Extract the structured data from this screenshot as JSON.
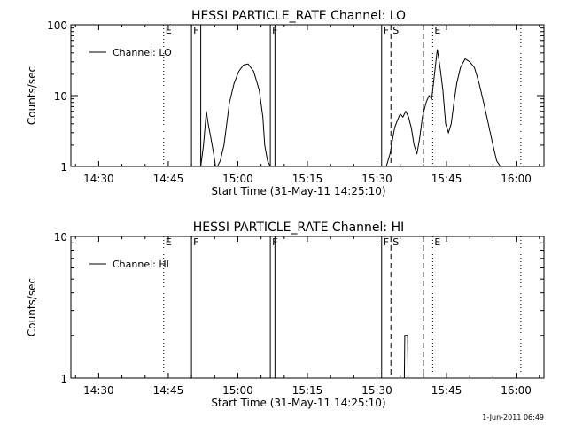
{
  "footer": {
    "timestamp": "1-Jun-2011 06:49"
  },
  "styles": {
    "line_color": "#000000",
    "background": "#ffffff"
  },
  "chart_data": [
    {
      "type": "line",
      "title": "HESSI PARTICLE_RATE Channel: LO",
      "xlabel": "Start Time (31-May-11 14:25:10)",
      "ylabel": "Counts/sec",
      "xlim": [
        "14:24",
        "16:06"
      ],
      "ylim": [
        1,
        100
      ],
      "yscale": "log",
      "x_ticks": [
        "14:30",
        "14:45",
        "15:00",
        "15:15",
        "15:30",
        "15:45",
        "16:00"
      ],
      "y_ticks": [
        "1",
        "10",
        "100"
      ],
      "legend": {
        "entries": [
          "Channel: LO"
        ],
        "position": "top-left"
      },
      "series": [
        {
          "name": "Channel: LO",
          "x": [
            "14:52.0",
            "14:52.6",
            "14:53.2",
            "14:53.6",
            "14:54.2",
            "14:54.8",
            "14:55.2",
            "14:55.6",
            "14:56.2",
            "14:57.0",
            "14:57.6",
            "14:58.2",
            "14:59.2",
            "15:00.2",
            "15:01.2",
            "15:02.2",
            "15:03.4",
            "15:04.6",
            "15:05.4",
            "15:05.8",
            "15:06.4",
            "15:07.0",
            "15:07.4",
            "15:32.0",
            "15:32.8",
            "15:33.4",
            "15:33.8",
            "15:34.4",
            "15:35.0",
            "15:35.6",
            "15:36.2",
            "15:36.8",
            "15:37.4",
            "15:38.0",
            "15:38.6",
            "15:39.2",
            "15:39.8",
            "15:40.6",
            "15:41.2",
            "15:41.8",
            "15:42.4",
            "15:43.0",
            "15:43.6",
            "15:44.2",
            "15:44.8",
            "15:45.4",
            "15:46.0",
            "15:46.6",
            "15:47.2",
            "15:48.0",
            "15:49.0",
            "15:50.0",
            "15:51.0",
            "15:52.0",
            "15:53.0",
            "15:54.0",
            "15:55.0",
            "15:55.8",
            "15:56.6",
            "15:57.2"
          ],
          "y": [
            1.0,
            2.0,
            6.0,
            4.0,
            2.5,
            1.5,
            1.0,
            1.0,
            1.2,
            2.0,
            4.0,
            8.0,
            15.0,
            22.0,
            27.0,
            28.0,
            22.0,
            12.0,
            5.0,
            2.0,
            1.2,
            1.0,
            1.0,
            1.0,
            1.5,
            2.5,
            3.5,
            4.5,
            5.5,
            5.0,
            6.0,
            5.0,
            3.5,
            2.0,
            1.5,
            2.5,
            5.0,
            8.0,
            10.0,
            9.0,
            20.0,
            45.0,
            25.0,
            12.0,
            4.0,
            3.0,
            4.0,
            8.0,
            15.0,
            25.0,
            33.0,
            30.0,
            25.0,
            15.0,
            8.0,
            4.0,
            2.0,
            1.2,
            1.0,
            1.0
          ]
        }
      ],
      "vertical_markers": [
        {
          "time": "14:44",
          "style": "dotted",
          "label": "E"
        },
        {
          "time": "14:50",
          "style": "solid",
          "label": "F"
        },
        {
          "time": "14:52",
          "style": "solid",
          "label": ""
        },
        {
          "time": "15:07",
          "style": "solid",
          "label": "F"
        },
        {
          "time": "15:08",
          "style": "solid",
          "label": ""
        },
        {
          "time": "15:31",
          "style": "solid",
          "label": "F"
        },
        {
          "time": "15:33",
          "style": "dashed",
          "label": "S"
        },
        {
          "time": "15:40",
          "style": "dashed",
          "label": ""
        },
        {
          "time": "15:42",
          "style": "dotted",
          "label": "E"
        },
        {
          "time": "16:01",
          "style": "dotted",
          "label": ""
        }
      ]
    },
    {
      "type": "line",
      "title": "HESSI PARTICLE_RATE Channel: HI",
      "xlabel": "Start Time (31-May-11 14:25:10)",
      "ylabel": "Counts/sec",
      "xlim": [
        "14:24",
        "16:06"
      ],
      "ylim": [
        1,
        10
      ],
      "yscale": "log",
      "x_ticks": [
        "14:30",
        "14:45",
        "15:00",
        "15:15",
        "15:30",
        "15:45",
        "16:00"
      ],
      "y_ticks": [
        "1",
        "10"
      ],
      "legend": {
        "entries": [
          "Channel: HI"
        ],
        "position": "top-left"
      },
      "series": [
        {
          "name": "Channel: HI",
          "x": [
            "15:35.4",
            "15:35.9",
            "15:36.0",
            "15:36.6",
            "15:36.7",
            "15:37.4"
          ],
          "y": [
            1.0,
            1.0,
            2.0,
            2.0,
            1.0,
            1.0
          ]
        }
      ],
      "vertical_markers": [
        {
          "time": "14:44",
          "style": "dotted",
          "label": "E"
        },
        {
          "time": "14:50",
          "style": "solid",
          "label": "F"
        },
        {
          "time": "15:07",
          "style": "solid",
          "label": "F"
        },
        {
          "time": "15:08",
          "style": "solid",
          "label": ""
        },
        {
          "time": "15:31",
          "style": "solid",
          "label": "F"
        },
        {
          "time": "15:33",
          "style": "dashed",
          "label": "S"
        },
        {
          "time": "15:40",
          "style": "dashed",
          "label": ""
        },
        {
          "time": "15:42",
          "style": "dotted",
          "label": "E"
        },
        {
          "time": "16:01",
          "style": "dotted",
          "label": ""
        }
      ]
    }
  ]
}
